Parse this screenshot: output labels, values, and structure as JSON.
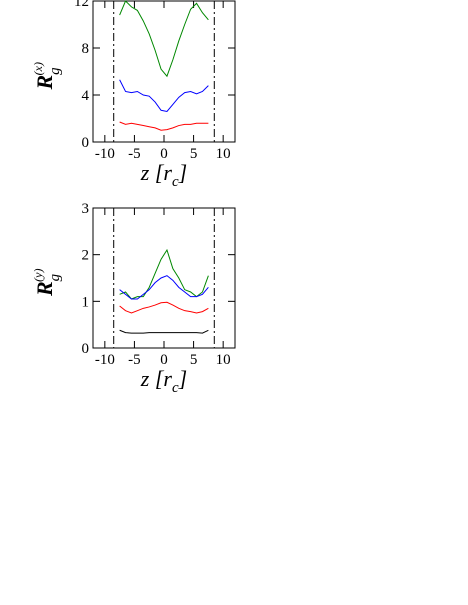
{
  "chart_data": [
    {
      "type": "line",
      "ylabel": {
        "main": "R",
        "sub": "g",
        "sup": "(x)"
      },
      "xlabel": {
        "main": "z [r",
        "sub": "c",
        "end": "]"
      },
      "x": [
        -7.5,
        -6.5,
        -5.5,
        -4.5,
        -3.5,
        -2.5,
        -1.5,
        -0.5,
        0.5,
        1.5,
        2.5,
        3.5,
        4.5,
        5.5,
        6.5,
        7.5
      ],
      "series": [
        {
          "color": "#008800",
          "values": [
            10.8,
            12,
            11.5,
            11.2,
            10.3,
            9.2,
            7.8,
            6.2,
            5.6,
            7,
            8.6,
            10,
            11.3,
            11.8,
            11,
            10.4
          ]
        },
        {
          "color": "#0000ff",
          "values": [
            5.3,
            4.3,
            4.2,
            4.3,
            4.0,
            3.9,
            3.4,
            2.7,
            2.6,
            3.2,
            3.8,
            4.2,
            4.3,
            4.1,
            4.3,
            4.8
          ]
        },
        {
          "color": "#ff0000",
          "values": [
            1.7,
            1.5,
            1.6,
            1.5,
            1.4,
            1.3,
            1.2,
            1.0,
            1.05,
            1.2,
            1.4,
            1.5,
            1.5,
            1.6,
            1.6,
            1.6
          ]
        }
      ],
      "vlines": [
        -8.5,
        8.5
      ],
      "xlim": [
        -12,
        12
      ],
      "xticks": [
        -10,
        -5,
        0,
        5,
        10
      ],
      "ylim": [
        0,
        12
      ],
      "yticks": [
        0,
        4,
        8,
        12
      ]
    },
    {
      "type": "line",
      "ylabel": {
        "main": "R",
        "sub": "g",
        "sup": "(y)"
      },
      "xlabel": {
        "main": "z [r",
        "sub": "c",
        "end": "]"
      },
      "x": [
        -7.5,
        -6.5,
        -5.5,
        -4.5,
        -3.5,
        -2.5,
        -1.5,
        -0.5,
        0.5,
        1.5,
        2.5,
        3.5,
        4.5,
        5.5,
        6.5,
        7.5
      ],
      "series": [
        {
          "color": "#008800",
          "values": [
            1.15,
            1.2,
            1.05,
            1.1,
            1.1,
            1.3,
            1.6,
            1.9,
            2.1,
            1.7,
            1.5,
            1.25,
            1.2,
            1.1,
            1.2,
            1.55
          ]
        },
        {
          "color": "#0000ff",
          "values": [
            1.25,
            1.15,
            1.05,
            1.05,
            1.15,
            1.25,
            1.4,
            1.5,
            1.55,
            1.45,
            1.3,
            1.2,
            1.1,
            1.1,
            1.15,
            1.3
          ]
        },
        {
          "color": "#ff0000",
          "values": [
            0.9,
            0.8,
            0.75,
            0.8,
            0.85,
            0.88,
            0.92,
            0.97,
            0.98,
            0.92,
            0.85,
            0.8,
            0.78,
            0.75,
            0.78,
            0.85
          ]
        },
        {
          "color": "#000000",
          "values": [
            0.38,
            0.33,
            0.32,
            0.32,
            0.32,
            0.33,
            0.33,
            0.33,
            0.33,
            0.33,
            0.33,
            0.33,
            0.33,
            0.33,
            0.32,
            0.38
          ]
        }
      ],
      "vlines": [
        -8.5,
        8.5
      ],
      "xlim": [
        -12,
        12
      ],
      "xticks": [
        -10,
        -5,
        0,
        5,
        10
      ],
      "ylim": [
        0,
        3
      ],
      "yticks": [
        0,
        1,
        2,
        3
      ]
    }
  ]
}
